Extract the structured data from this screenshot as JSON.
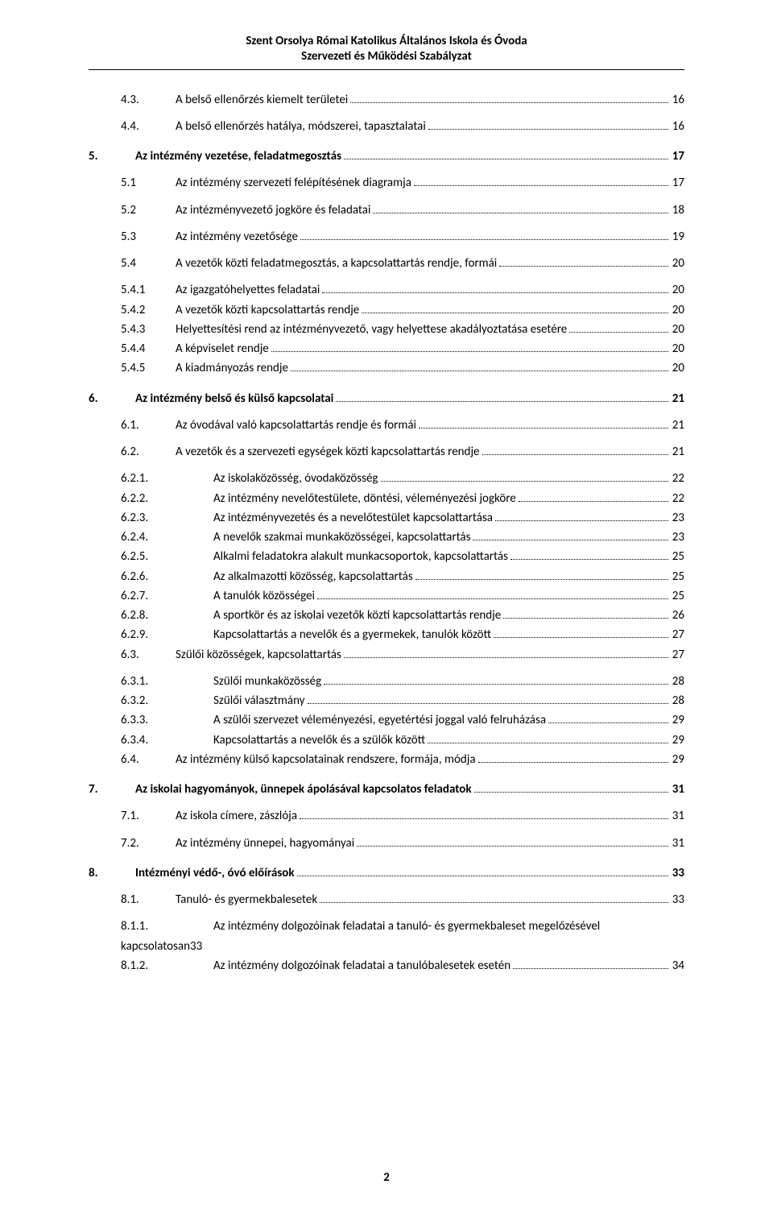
{
  "header": {
    "line1": "Szent Orsolya Római Katolikus Általános Iskola és Óvoda",
    "line2": "Szervezeti és Működési Szabályzat"
  },
  "footer": {
    "page_number": "2"
  },
  "toc": [
    {
      "lvl": "lvl2 sp-below",
      "num": "4.3.",
      "txt": "A belső ellenőrzés kiemelt területei",
      "pg": "16"
    },
    {
      "lvl": "lvl2 sp-below",
      "num": "4.4.",
      "txt": "A belső ellenőrzés hatálya, módszerei, tapasztalatai",
      "pg": "16"
    },
    {
      "lvl": "lvl1",
      "num": "5.",
      "txt": "Az intézmény vezetése, feladatmegosztás",
      "pg": "17"
    },
    {
      "lvl": "lvl2 sp-below",
      "num": "5.1",
      "txt": "Az intézmény szervezeti felépítésének diagramja",
      "pg": "17"
    },
    {
      "lvl": "lvl2 sp-below",
      "num": "5.2",
      "txt": "Az intézményvezető jogköre és feladatai",
      "pg": "18"
    },
    {
      "lvl": "lvl2 sp-below",
      "num": "5.3",
      "txt": "Az intézmény vezetősége",
      "pg": "19"
    },
    {
      "lvl": "lvl2 sp-below",
      "num": "5.4",
      "txt": "A vezetők közti feladatmegosztás, a kapcsolattartás rendje, formái",
      "pg": "20"
    },
    {
      "lvl": "lvl3",
      "num": "5.4.1",
      "txt": "Az igazgatóhelyettes feladatai",
      "pg": "20"
    },
    {
      "lvl": "lvl3",
      "num": "5.4.2",
      "txt": "A vezetők közti kapcsolattartás rendje",
      "pg": "20"
    },
    {
      "lvl": "lvl3",
      "num": "5.4.3",
      "txt": "Helyettesítési rend az intézményvezető, vagy helyettese akadályoztatása esetére",
      "pg": "20"
    },
    {
      "lvl": "lvl3",
      "num": "5.4.4",
      "txt": "A képviselet rendje",
      "pg": "20"
    },
    {
      "lvl": "lvl3",
      "num": "5.4.5",
      "txt": "A kiadmányozás rendje",
      "pg": "20"
    },
    {
      "lvl": "lvl1",
      "num": "6.",
      "txt": "Az intézmény belső és külső kapcsolatai",
      "pg": "21"
    },
    {
      "lvl": "lvl2 sp-below",
      "num": "6.1.",
      "txt": "Az óvodával való kapcsolattartás rendje és formái",
      "pg": "21"
    },
    {
      "lvl": "lvl2 sp-below",
      "num": "6.2.",
      "txt": "A vezetők és a szervezeti egységek közti kapcsolattartás rendje",
      "pg": "21"
    },
    {
      "lvl": "lvl3b",
      "num": "6.2.1.",
      "txt": "Az iskolaközösség, óvodaközösség",
      "pg": "22"
    },
    {
      "lvl": "lvl3b",
      "num": "6.2.2.",
      "txt": "Az intézmény nevelőtestülete, döntési, véleményezési jogköre",
      "pg": "22"
    },
    {
      "lvl": "lvl3b",
      "num": "6.2.3.",
      "txt": "Az intézményvezetés és a nevelőtestület kapcsolattartása",
      "pg": "23"
    },
    {
      "lvl": "lvl3b",
      "num": "6.2.4.",
      "txt": "A nevelők szakmai munkaközösségei, kapcsolattartás",
      "pg": "23"
    },
    {
      "lvl": "lvl3b",
      "num": "6.2.5.",
      "txt": "Alkalmi feladatokra alakult munkacsoportok, kapcsolattartás",
      "pg": "25"
    },
    {
      "lvl": "lvl3b",
      "num": "6.2.6.",
      "txt": "Az alkalmazotti közösség, kapcsolattartás",
      "pg": "25"
    },
    {
      "lvl": "lvl3b",
      "num": "6.2.7.",
      "txt": "A tanulók közösségei",
      "pg": "25"
    },
    {
      "lvl": "lvl3b",
      "num": "6.2.8.",
      "txt": "A sportkör és az iskolai vezetők közti kapcsolattartás rendje",
      "pg": "26"
    },
    {
      "lvl": "lvl3b",
      "num": "6.2.9.",
      "txt": "Kapcsolattartás a nevelők és a gyermekek, tanulók között",
      "pg": "27"
    },
    {
      "lvl": "lvl2 sp-below",
      "num": "6.3.",
      "txt": "Szülői közösségek, kapcsolattartás",
      "pg": "27"
    },
    {
      "lvl": "lvl3b",
      "num": "6.3.1.",
      "txt": "Szülői munkaközösség",
      "pg": "28"
    },
    {
      "lvl": "lvl3b",
      "num": "6.3.2.",
      "txt": "Szülői választmány",
      "pg": "28"
    },
    {
      "lvl": "lvl3b",
      "num": "6.3.3.",
      "txt": "A szülői szervezet véleményezési, egyetértési joggal való felruházása",
      "pg": "29"
    },
    {
      "lvl": "lvl3b",
      "num": "6.3.4.",
      "txt": "Kapcsolattartás a nevelők és a szülők között",
      "pg": "29"
    },
    {
      "lvl": "lvl2 sp-below",
      "num": "6.4.",
      "txt": "Az intézmény külső kapcsolatainak rendszere, formája, módja",
      "pg": "29"
    },
    {
      "lvl": "lvl1",
      "num": "7.",
      "txt": "Az iskolai hagyományok, ünnepek ápolásával kapcsolatos feladatok",
      "pg": "31"
    },
    {
      "lvl": "lvl2 sp-below",
      "num": "7.1.",
      "txt": "Az iskola címere, zászlója",
      "pg": "31"
    },
    {
      "lvl": "lvl2 sp-below",
      "num": "7.2.",
      "txt": "Az intézmény ünnepei, hagyományai",
      "pg": "31"
    },
    {
      "lvl": "lvl1",
      "num": "8.",
      "txt": "Intézményi védő-, óvó előírások",
      "pg": "33"
    },
    {
      "lvl": "lvl2 sp-below",
      "num": "8.1.",
      "txt": "Tanuló- és gyermekbalesetek",
      "pg": "33"
    }
  ],
  "wrap_entry": {
    "num": "8.1.1.",
    "text": "Az intézmény dolgozóinak feladatai a tanuló- és gyermekbaleset megelőzésével",
    "tail_label": "kapcsolatosan",
    "tail_page": "33"
  },
  "last_entry": {
    "lvl": "lvl3b",
    "num": "8.1.2.",
    "txt": "Az intézmény dolgozóinak feladatai a tanulóbalesetek esetén",
    "pg": "34"
  }
}
